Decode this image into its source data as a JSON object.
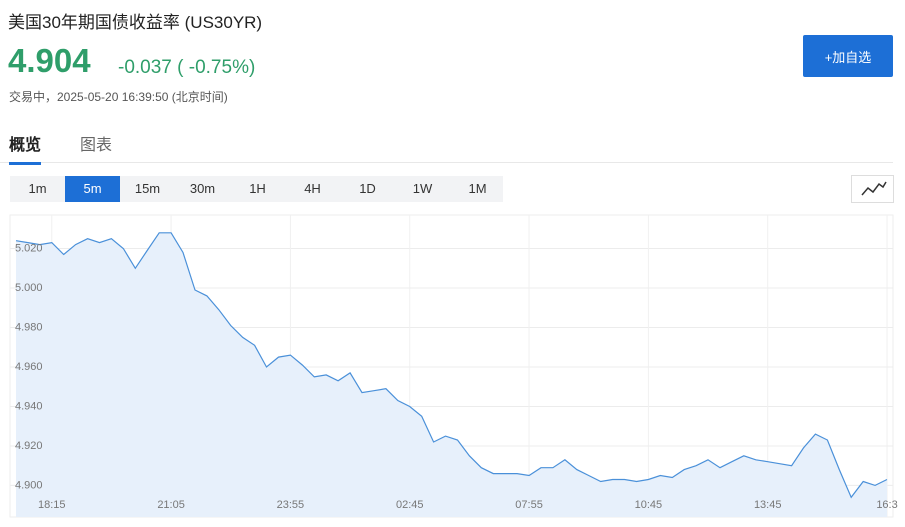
{
  "header": {
    "title": "美国30年期国债收益率 (US30YR)",
    "price": "4.904",
    "change": "-0.037 ( -0.75%)",
    "status": "交易中，2025-05-20 16:39:50 (北京时间)",
    "button": "+加自选"
  },
  "tabs": [
    "概览",
    "图表"
  ],
  "intervals": [
    "1m",
    "5m",
    "15m",
    "30m",
    "1H",
    "4H",
    "1D",
    "1W",
    "1M"
  ],
  "chart_data": {
    "type": "area",
    "color": "#4a90d9",
    "fill": "#e7f0fb",
    "grid": true,
    "categories": [
      null,
      null,
      null,
      "18:15",
      null,
      null,
      null,
      null,
      null,
      null,
      null,
      null,
      null,
      "21:05",
      null,
      null,
      null,
      null,
      null,
      null,
      null,
      null,
      null,
      "23:55",
      null,
      null,
      null,
      null,
      null,
      null,
      null,
      null,
      null,
      "02:45",
      null,
      null,
      null,
      null,
      null,
      null,
      null,
      null,
      null,
      "07:55",
      null,
      null,
      null,
      null,
      null,
      null,
      null,
      null,
      null,
      "10:45",
      null,
      null,
      null,
      null,
      null,
      null,
      null,
      null,
      null,
      "13:45",
      null,
      null,
      null,
      null,
      null,
      null,
      null,
      null,
      null,
      "16:3"
    ],
    "values": [
      5.024,
      5.023,
      5.022,
      5.023,
      5.017,
      5.022,
      5.025,
      5.023,
      5.025,
      5.02,
      5.01,
      5.019,
      5.028,
      5.028,
      5.018,
      4.999,
      4.996,
      4.989,
      4.981,
      4.975,
      4.971,
      4.96,
      4.965,
      4.966,
      4.961,
      4.955,
      4.956,
      4.953,
      4.957,
      4.947,
      4.948,
      4.949,
      4.943,
      4.94,
      4.935,
      4.922,
      4.925,
      4.923,
      4.915,
      4.909,
      4.906,
      4.906,
      4.906,
      4.905,
      4.909,
      4.909,
      4.913,
      4.908,
      4.905,
      4.902,
      4.903,
      4.903,
      4.902,
      4.903,
      4.905,
      4.904,
      4.908,
      4.91,
      4.913,
      4.909,
      4.912,
      4.915,
      4.913,
      4.912,
      4.911,
      4.91,
      4.919,
      4.926,
      4.923,
      4.908,
      4.894,
      4.902,
      4.9,
      4.903
    ],
    "ylim": [
      4.884,
      5.037
    ],
    "yticks": [
      {
        "value": 4.9,
        "label": "4.900"
      },
      {
        "value": 4.92,
        "label": "4.920"
      },
      {
        "value": 4.94,
        "label": "4.940"
      },
      {
        "value": 4.96,
        "label": "4.960"
      },
      {
        "value": 4.98,
        "label": "4.980"
      },
      {
        "value": 5.0,
        "label": "5.000"
      },
      {
        "value": 5.02,
        "label": "5.020"
      }
    ]
  }
}
